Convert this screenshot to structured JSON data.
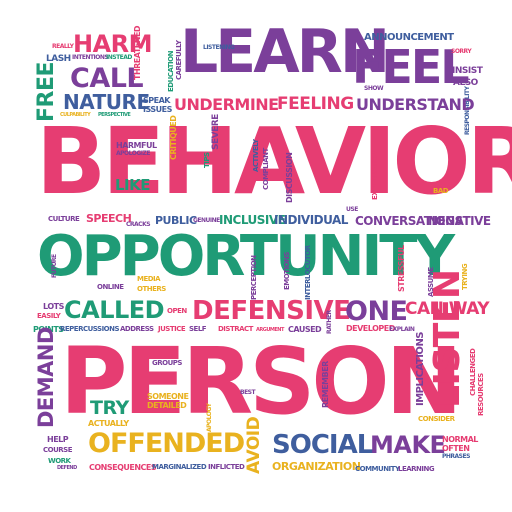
{
  "words": {
    "behavior": "BEHAVIOR",
    "opportunity": "OPPORTUNITY",
    "person": "PERSON",
    "learn": "LEARN",
    "feel": "FEEL",
    "harm": "HARM",
    "call": "CALL",
    "nature": "NATURE",
    "free": "FREE",
    "undermine": "UNDERMINE",
    "feeling": "FEELING",
    "understand": "UNDERSTAND",
    "announcement": "ANNOUNCEMENT",
    "listening": "LISTENING",
    "speak": "SPEAK",
    "issues": "ISSUES",
    "education": "EDUCATION",
    "carefully": "CAREFULLY",
    "threatened": "THREATENED",
    "intentions": "INTENTIONS",
    "instead": "INSTEAD",
    "lash": "LASH",
    "really": "REALLY",
    "culpability": "CULPABILITY",
    "perspective": "PERSPECTIVE",
    "insist": "INSIST",
    "also": "ALSO",
    "sorry": "SORRY",
    "show": "SHOW",
    "responsibility": "RESPONSIBILITY",
    "harmful": "HARMFUL",
    "apologize": "APOLOGIZE",
    "critiqued": "CRITIQUED",
    "severe": "SEVERE",
    "tips": "TIPS",
    "actively": "ACTIVELY",
    "compliant": "COMPLIANT",
    "discussion": "DISCUSSION",
    "explanation": "EXPLANATION",
    "bad": "BAD",
    "like": "LIKE",
    "culture": "CULTURE",
    "speech": "SPEECH",
    "cracks": "CRACKS",
    "public": "PUBLIC",
    "genuine": "GENUINE",
    "inclusive": "INCLUSIVE",
    "individual": "INDIVIDUAL",
    "use": "USE",
    "conversations": "CONVERSATIONS",
    "negative": "NEGATIVE",
    "future": "FUTURE",
    "media": "MEDIA",
    "others": "OTHERS",
    "online": "ONLINE",
    "perception": "PERCEPTION",
    "emotions": "EMOTIONS",
    "interlocutor": "INTERLOCUTOR",
    "stressful": "STRESSFUL",
    "assume": "ASSUME",
    "trying": "TRYING",
    "lots": "LOTS",
    "easily": "EASILY",
    "called": "CALLED",
    "open": "OPEN",
    "defensive": "DEFENSIVE",
    "one": "ONE",
    "can_way": "CAN WAY",
    "points": "POINTS",
    "repercussions": "REPERCUSSIONS",
    "address": "ADDRESS",
    "justice": "JUSTICE",
    "self": "SELF",
    "distract": "DISTRACT",
    "argument": "ARGUMENT",
    "caused": "CAUSED",
    "rather": "RATHER",
    "developed": "DEVELOPED",
    "explain": "EXPLAIN",
    "demand": "DEMAND",
    "groups": "GROUPS",
    "best": "BEST",
    "remember": "REMEMBER",
    "implications": "IMPLICATIONS",
    "listen": "LISTEN",
    "challenged": "CHALLENGED",
    "resources": "RESOURCES",
    "try": "TRY",
    "someone": "SOMEONE",
    "detailed": "DETAILED",
    "actually": "ACTUALLY",
    "apology": "APOLOGY",
    "consider": "CONSIDER",
    "help": "HELP",
    "course": "COURSE",
    "work": "WORK",
    "offended": "OFFENDED",
    "avoid": "AVOID",
    "social": "SOCIAL",
    "make": "MAKE",
    "normal": "NORMAL",
    "often": "OFTEN",
    "phrases": "PHRASES",
    "defend": "DEFEND",
    "consequences": "CONSEQUENCES",
    "marginalized": "MARGINALIZED",
    "inflicted": "INFLICTED",
    "organization": "ORGANIZATION",
    "community": "COMMUNITY",
    "learning": "LEARNING"
  },
  "palette": {
    "pink": "#e63d72",
    "purple": "#7b3f9a",
    "green": "#1f9b76",
    "blue": "#3f5e9e",
    "yellow": "#e9b21f"
  }
}
